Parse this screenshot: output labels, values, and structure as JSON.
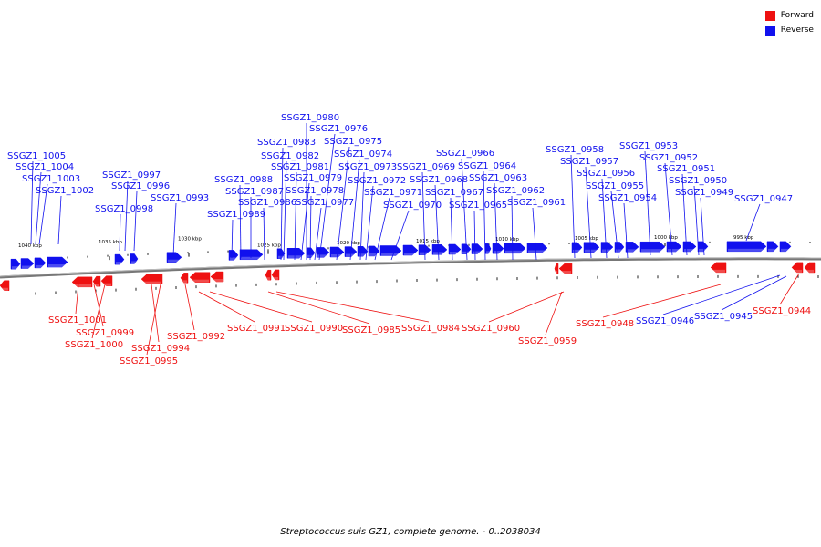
{
  "title": "Streptococcus suis GZ1, complete genome. - 0..2038034",
  "colors": {
    "forward": "#ee1111",
    "reverse": "#1111ee",
    "backbone": "#777777"
  },
  "legend": [
    {
      "label": "Forward",
      "color": "#ee1111"
    },
    {
      "label": "Reverse",
      "color": "#1111ee"
    }
  ],
  "scale_ticks": [
    "1040 kbp",
    "1035 kbp",
    "1030 kbp",
    "1025 kbp",
    "1020 kbp",
    "1015 kbp",
    "1010 kbp",
    "1005 kbp",
    "1000 kbp",
    "995 kbp"
  ],
  "reverse_genes": [
    "SSGZ1_1005",
    "SSGZ1_1004",
    "SSGZ1_1003",
    "SSGZ1_1002",
    "SSGZ1_0998",
    "SSGZ1_0997",
    "SSGZ1_0996",
    "SSGZ1_0993",
    "SSGZ1_0989",
    "SSGZ1_0988",
    "SSGZ1_0987",
    "SSGZ1_0986",
    "SSGZ1_0983",
    "SSGZ1_0982",
    "SSGZ1_0981",
    "SSGZ1_0980",
    "SSGZ1_0979",
    "SSGZ1_0978",
    "SSGZ1_0977",
    "SSGZ1_0976",
    "SSGZ1_0975",
    "SSGZ1_0974",
    "SSGZ1_0973",
    "SSGZ1_0972",
    "SSGZ1_0971",
    "SSGZ1_0970",
    "SSGZ1_0969",
    "SSGZ1_0968",
    "SSGZ1_0967",
    "SSGZ1_0966",
    "SSGZ1_0965",
    "SSGZ1_0964",
    "SSGZ1_0963",
    "SSGZ1_0962",
    "SSGZ1_0961",
    "SSGZ1_0958",
    "SSGZ1_0957",
    "SSGZ1_0956",
    "SSGZ1_0955",
    "SSGZ1_0954",
    "SSGZ1_0953",
    "SSGZ1_0952",
    "SSGZ1_0951",
    "SSGZ1_0950",
    "SSGZ1_0949",
    "SSGZ1_0947",
    "SSGZ1_0946",
    "SSGZ1_0945"
  ],
  "forward_genes": [
    "SSGZ1_1001",
    "SSGZ1_0999",
    "SSGZ1_1000",
    "SSGZ1_0994",
    "SSGZ1_0995",
    "SSGZ1_0992",
    "SSGZ1_0991",
    "SSGZ1_0990",
    "SSGZ1_0985",
    "SSGZ1_0984",
    "SSGZ1_0960",
    "SSGZ1_0959",
    "SSGZ1_0948",
    "SSGZ1_0944"
  ]
}
